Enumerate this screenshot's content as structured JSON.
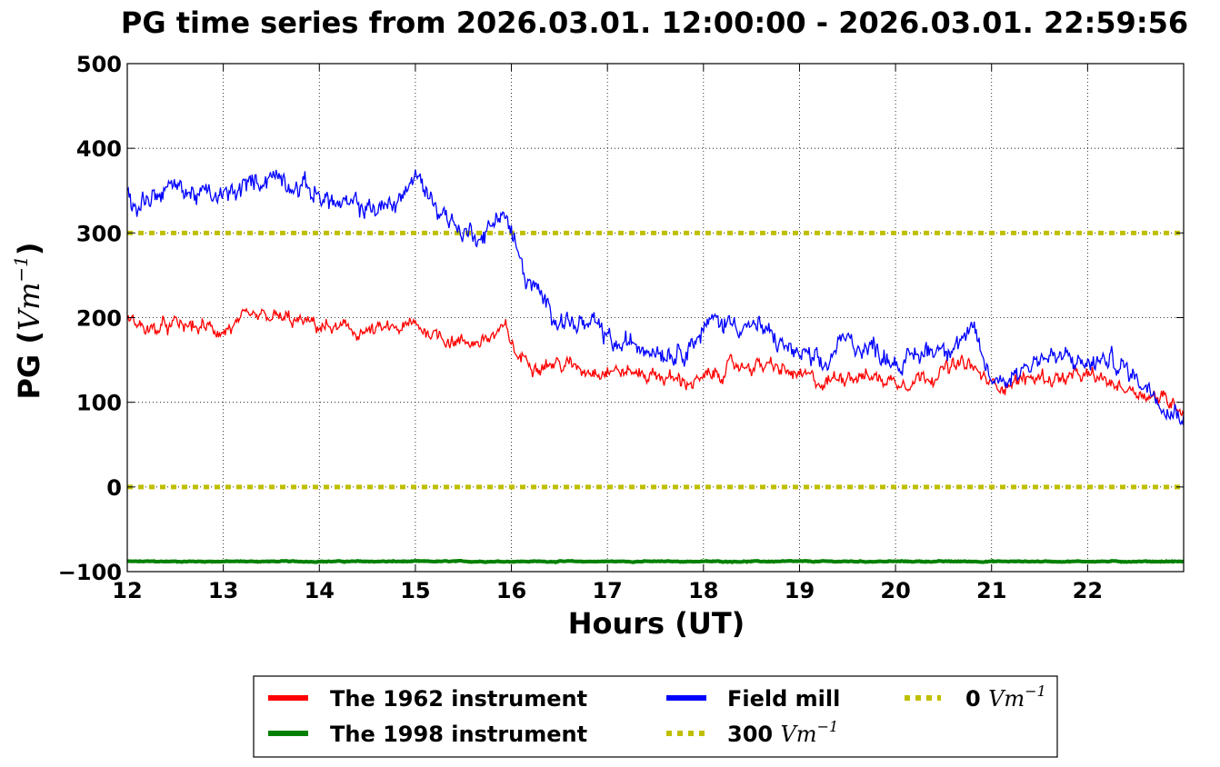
{
  "chart_data": {
    "type": "line",
    "title": "PG time series from 2026.03.01. 12:00:00 - 2026.03.01. 22:59:56",
    "xlabel": "Hours (UT)",
    "ylabel_main": "PG (",
    "ylabel_unit": "Vm",
    "ylabel_exp": "−1",
    "ylabel_close": ")",
    "xlim": [
      12,
      23
    ],
    "ylim": [
      -100,
      500
    ],
    "x_ticks": [
      12,
      13,
      14,
      15,
      16,
      17,
      18,
      19,
      20,
      21,
      22
    ],
    "y_ticks": [
      -100,
      0,
      100,
      200,
      300,
      400,
      500
    ],
    "y_tick_labels": [
      "−100",
      "0",
      "100",
      "200",
      "300",
      "400",
      "500"
    ],
    "grid": true,
    "legend_position": "bottom-center, below plot",
    "series": [
      {
        "name": "The 1962 instrument",
        "color": "#ff0000",
        "style": "solid",
        "x": [
          12.0,
          12.25,
          12.5,
          12.75,
          13.0,
          13.25,
          13.5,
          13.75,
          14.0,
          14.25,
          14.5,
          14.75,
          15.0,
          15.25,
          15.5,
          15.75,
          15.95,
          16.05,
          16.25,
          16.5,
          16.75,
          17.0,
          17.25,
          17.5,
          17.75,
          18.0,
          18.25,
          18.5,
          18.75,
          19.0,
          19.25,
          19.5,
          19.75,
          20.0,
          20.25,
          20.5,
          20.75,
          21.0,
          21.25,
          21.5,
          21.75,
          22.0,
          22.25,
          22.5,
          22.75,
          23.0
        ],
        "y": [
          200,
          185,
          190,
          188,
          185,
          195,
          200,
          195,
          190,
          185,
          183,
          185,
          190,
          180,
          170,
          175,
          185,
          155,
          148,
          145,
          140,
          140,
          135,
          133,
          125,
          125,
          140,
          145,
          140,
          130,
          122,
          135,
          130,
          125,
          130,
          138,
          145,
          120,
          125,
          130,
          128,
          130,
          122,
          115,
          105,
          95
        ],
        "amplitude": 10
      },
      {
        "name": "The 1998 instrument",
        "color": "#008000",
        "style": "solid",
        "x": [
          12.0,
          23.0
        ],
        "y": [
          -88,
          -88
        ],
        "amplitude": 0.6
      },
      {
        "name": "Field mill",
        "color": "#0000ff",
        "style": "solid",
        "x": [
          12.0,
          12.05,
          12.25,
          12.5,
          12.75,
          13.0,
          13.25,
          13.5,
          13.75,
          14.0,
          14.25,
          14.5,
          14.75,
          15.0,
          15.25,
          15.5,
          15.75,
          15.9,
          16.0,
          16.15,
          16.35,
          16.6,
          16.9,
          17.1,
          17.4,
          17.7,
          17.9,
          18.1,
          18.4,
          18.6,
          18.85,
          19.1,
          19.25,
          19.4,
          19.6,
          19.85,
          20.1,
          20.3,
          20.55,
          20.8,
          21.0,
          21.25,
          21.5,
          21.75,
          22.0,
          22.25,
          22.5,
          22.75,
          22.9,
          23.0
        ],
        "y": [
          350,
          330,
          345,
          355,
          345,
          340,
          355,
          370,
          360,
          345,
          330,
          330,
          330,
          365,
          330,
          300,
          300,
          330,
          300,
          245,
          215,
          195,
          185,
          165,
          170,
          160,
          175,
          195,
          195,
          185,
          165,
          150,
          135,
          170,
          170,
          160,
          145,
          160,
          170,
          180,
          125,
          135,
          155,
          150,
          145,
          150,
          130,
          110,
          90,
          92
        ],
        "amplitude": 14
      },
      {
        "name": "300 Vm−1",
        "color": "#bfbf00",
        "style": "dotted",
        "x": [
          12,
          23
        ],
        "y": [
          300,
          300
        ]
      },
      {
        "name": "0 Vm−1",
        "color": "#bfbf00",
        "style": "dotted",
        "x": [
          12,
          23
        ],
        "y": [
          0,
          0
        ]
      }
    ],
    "legend": [
      {
        "id": "1962",
        "number": "",
        "label": "The 1962 instrument",
        "unit": "",
        "exp": "",
        "color": "#ff0000",
        "style": "solid"
      },
      {
        "id": "1998",
        "number": "",
        "label": "The 1998 instrument",
        "unit": "",
        "exp": "",
        "color": "#008000",
        "style": "solid"
      },
      {
        "id": "mill",
        "number": "",
        "label": "Field mill",
        "unit": "",
        "exp": "",
        "color": "#0000ff",
        "style": "solid"
      },
      {
        "id": "l300",
        "number": "300",
        "label": "",
        "unit": "Vm",
        "exp": "−1",
        "color": "#bfbf00",
        "style": "dotted"
      },
      {
        "id": "l0",
        "number": "0",
        "label": "",
        "unit": "Vm",
        "exp": "−1",
        "color": "#bfbf00",
        "style": "dotted"
      }
    ]
  }
}
